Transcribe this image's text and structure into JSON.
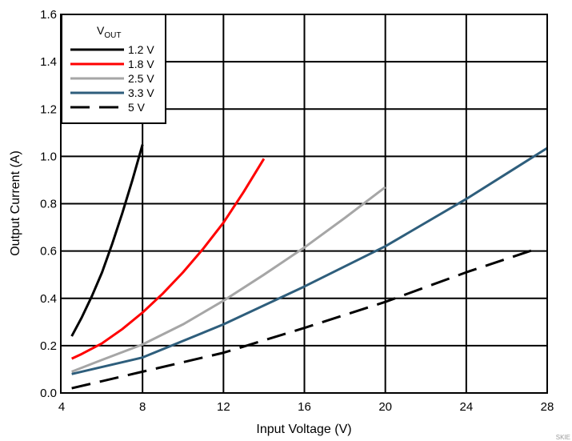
{
  "chart_data": {
    "type": "line",
    "xlabel": "Input Voltage (V)",
    "ylabel": "Output Current (A)",
    "xlim": [
      4,
      28
    ],
    "ylim": [
      0,
      1.6
    ],
    "xticks": [
      "4",
      "8",
      "12",
      "16",
      "20",
      "24",
      "28"
    ],
    "yticks": [
      "0.0",
      "0.2",
      "0.4",
      "0.6",
      "0.8",
      "1.0",
      "1.2",
      "1.4",
      "1.6"
    ],
    "grid": true,
    "legend": {
      "title_main": "V",
      "title_sub": "OUT",
      "position": "top-left"
    },
    "series": [
      {
        "name": "1.2 V",
        "color": "#000000",
        "dash": "solid",
        "x": [
          4.5,
          5,
          5.5,
          6,
          6.5,
          7,
          7.5,
          8
        ],
        "y": [
          0.24,
          0.32,
          0.41,
          0.51,
          0.63,
          0.76,
          0.9,
          1.05
        ]
      },
      {
        "name": "1.8 V",
        "color": "#ff0000",
        "dash": "solid",
        "x": [
          4.5,
          5,
          6,
          7,
          8,
          9,
          10,
          11,
          12,
          13,
          14
        ],
        "y": [
          0.145,
          0.165,
          0.21,
          0.27,
          0.34,
          0.42,
          0.51,
          0.61,
          0.72,
          0.85,
          0.99
        ]
      },
      {
        "name": "2.5 V",
        "color": "#a6a6a6",
        "dash": "solid",
        "x": [
          4.5,
          6,
          8,
          10,
          12,
          14,
          16,
          18,
          20
        ],
        "y": [
          0.09,
          0.14,
          0.205,
          0.29,
          0.39,
          0.5,
          0.615,
          0.74,
          0.87
        ]
      },
      {
        "name": "3.3 V",
        "color": "#2e5e7c",
        "dash": "solid",
        "x": [
          4.5,
          8,
          12,
          16,
          20,
          24,
          28
        ],
        "y": [
          0.08,
          0.15,
          0.29,
          0.45,
          0.62,
          0.82,
          1.035
        ]
      },
      {
        "name": "5 V",
        "color": "#000000",
        "dash": "dashed",
        "x": [
          4.5,
          8,
          12,
          16,
          20,
          24,
          27.5
        ],
        "y": [
          0.02,
          0.09,
          0.17,
          0.275,
          0.385,
          0.51,
          0.61
        ]
      }
    ],
    "code_label": "SKIE"
  }
}
